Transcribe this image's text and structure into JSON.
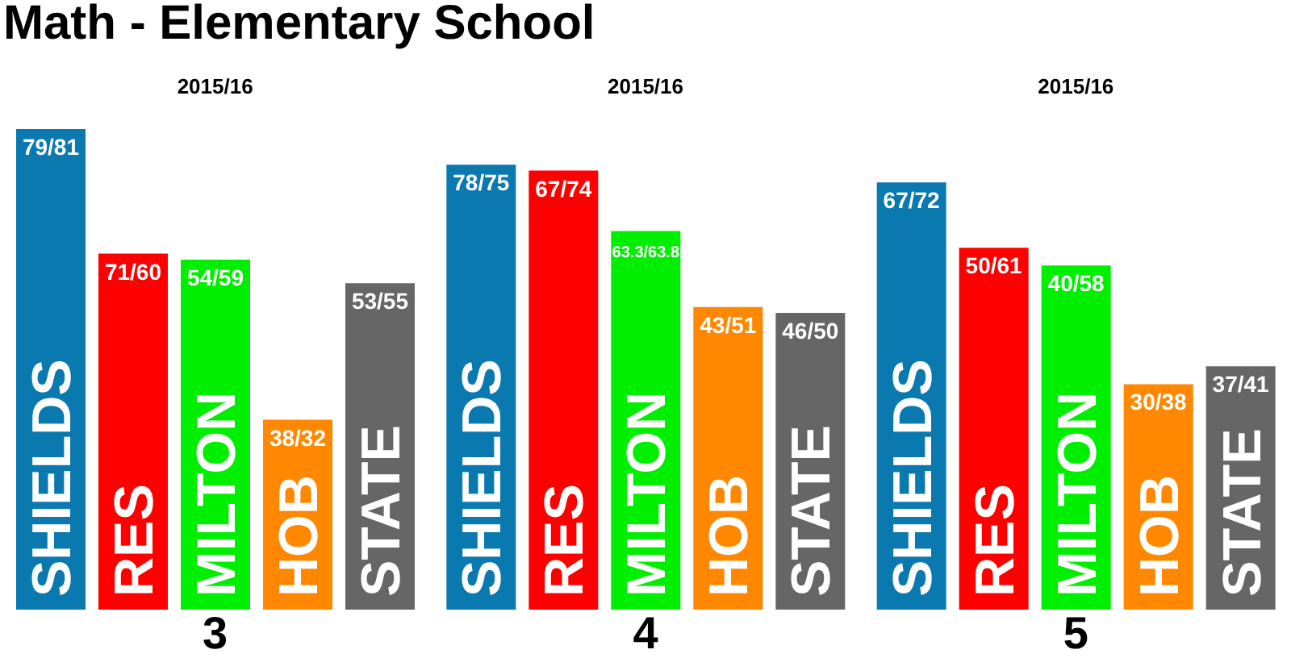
{
  "chart_data": {
    "type": "bar",
    "title": "Math - Elementary School",
    "annotations": [
      "2015/16",
      "2015/16",
      "2015/16"
    ],
    "categories": [
      "3",
      "4",
      "5"
    ],
    "grid": false,
    "legend": false,
    "series": [
      {
        "name": "SHIELDS",
        "color": "#0a79b0",
        "values": [
          81,
          75,
          72
        ],
        "value_labels": [
          "79/81",
          "78/75",
          "67/72"
        ]
      },
      {
        "name": "RES",
        "color": "#ff0000",
        "values": [
          60,
          74,
          61
        ],
        "value_labels": [
          "71/60",
          "67/74",
          "50/61"
        ]
      },
      {
        "name": "MILTON",
        "color": "#00ee00",
        "values": [
          59,
          63.8,
          58
        ],
        "value_labels": [
          "54/59",
          "63.3/63.8",
          "40/58"
        ]
      },
      {
        "name": "HOB",
        "color": "#ff8800",
        "values": [
          32,
          51,
          38
        ],
        "value_labels": [
          "38/32",
          "43/51",
          "30/38"
        ]
      },
      {
        "name": "STATE",
        "color": "#666666",
        "values": [
          55,
          50,
          41
        ],
        "value_labels": [
          "53/55",
          "46/50",
          "37/41"
        ]
      }
    ]
  }
}
